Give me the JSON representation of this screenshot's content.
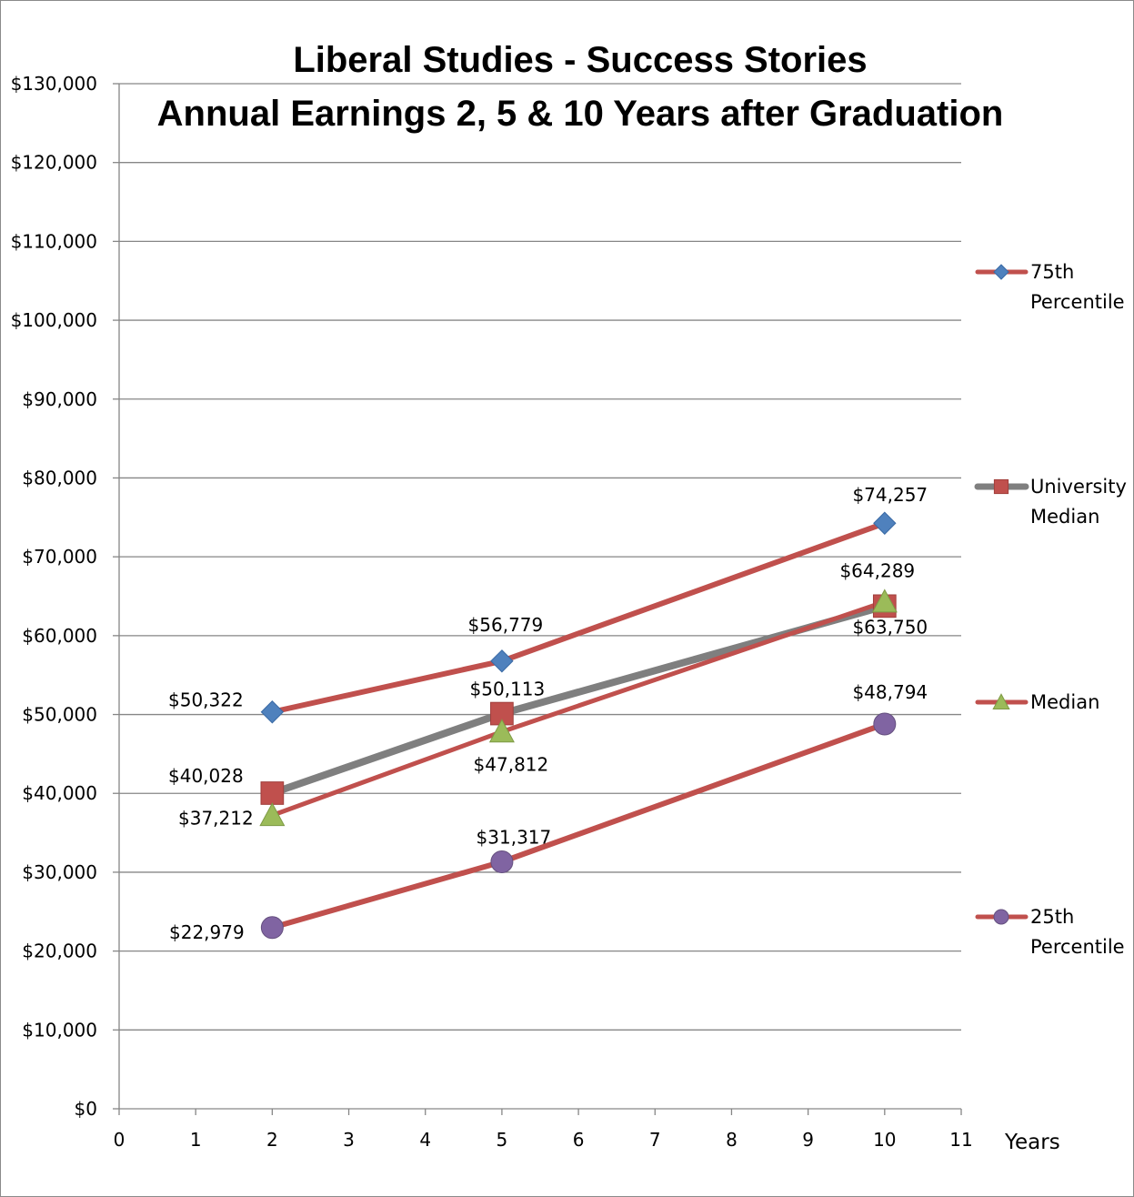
{
  "chart_data": {
    "type": "line",
    "title": "Liberal Studies - Success Stories",
    "subtitle": "Annual Earnings 2, 5 & 10 Years after Graduation",
    "xlabel": "Years",
    "ylabel": "",
    "xlim": [
      0,
      11
    ],
    "ylim": [
      0,
      130000
    ],
    "x_ticks": [
      "0",
      "1",
      "2",
      "3",
      "4",
      "5",
      "6",
      "7",
      "8",
      "9",
      "10",
      "11"
    ],
    "y_ticks": [
      "$0",
      "$10,000",
      "$20,000",
      "$30,000",
      "$40,000",
      "$50,000",
      "$60,000",
      "$70,000",
      "$80,000",
      "$90,000",
      "$100,000",
      "$110,000",
      "$120,000",
      "$130,000"
    ],
    "grid": "horizontal",
    "legend_position": "right",
    "series": [
      {
        "name": "75th Percentile",
        "legend_lines": [
          "75th",
          "Percentile"
        ],
        "line_color": "#c0504d",
        "marker": "diamond",
        "marker_color": "#4f81bd",
        "x": [
          2,
          5,
          10
        ],
        "values": [
          50322,
          56779,
          74257
        ],
        "data_labels": [
          "$50,322",
          "$56,779",
          "$74,257"
        ]
      },
      {
        "name": "University Median",
        "legend_lines": [
          "University",
          "Median"
        ],
        "line_color": "#7f7f7f",
        "marker": "square",
        "marker_color": "#c0504d",
        "x": [
          2,
          5,
          10
        ],
        "values": [
          40028,
          50113,
          63750
        ],
        "data_labels": [
          "$40,028",
          "$50,113",
          "$63,750"
        ]
      },
      {
        "name": "Median",
        "legend_lines": [
          "Median"
        ],
        "line_color": "#c0504d",
        "marker": "triangle",
        "marker_color": "#9bbb59",
        "x": [
          2,
          5,
          10
        ],
        "values": [
          37212,
          47812,
          64289
        ],
        "data_labels": [
          "$37,212",
          "$47,812",
          "$64,289"
        ]
      },
      {
        "name": "25th Percentile",
        "legend_lines": [
          "25th",
          "Percentile"
        ],
        "line_color": "#c0504d",
        "marker": "circle",
        "marker_color": "#8064a2",
        "x": [
          2,
          5,
          10
        ],
        "values": [
          22979,
          31317,
          48794
        ],
        "data_labels": [
          "$22,979",
          "$31,317",
          "$48,794"
        ]
      }
    ]
  }
}
